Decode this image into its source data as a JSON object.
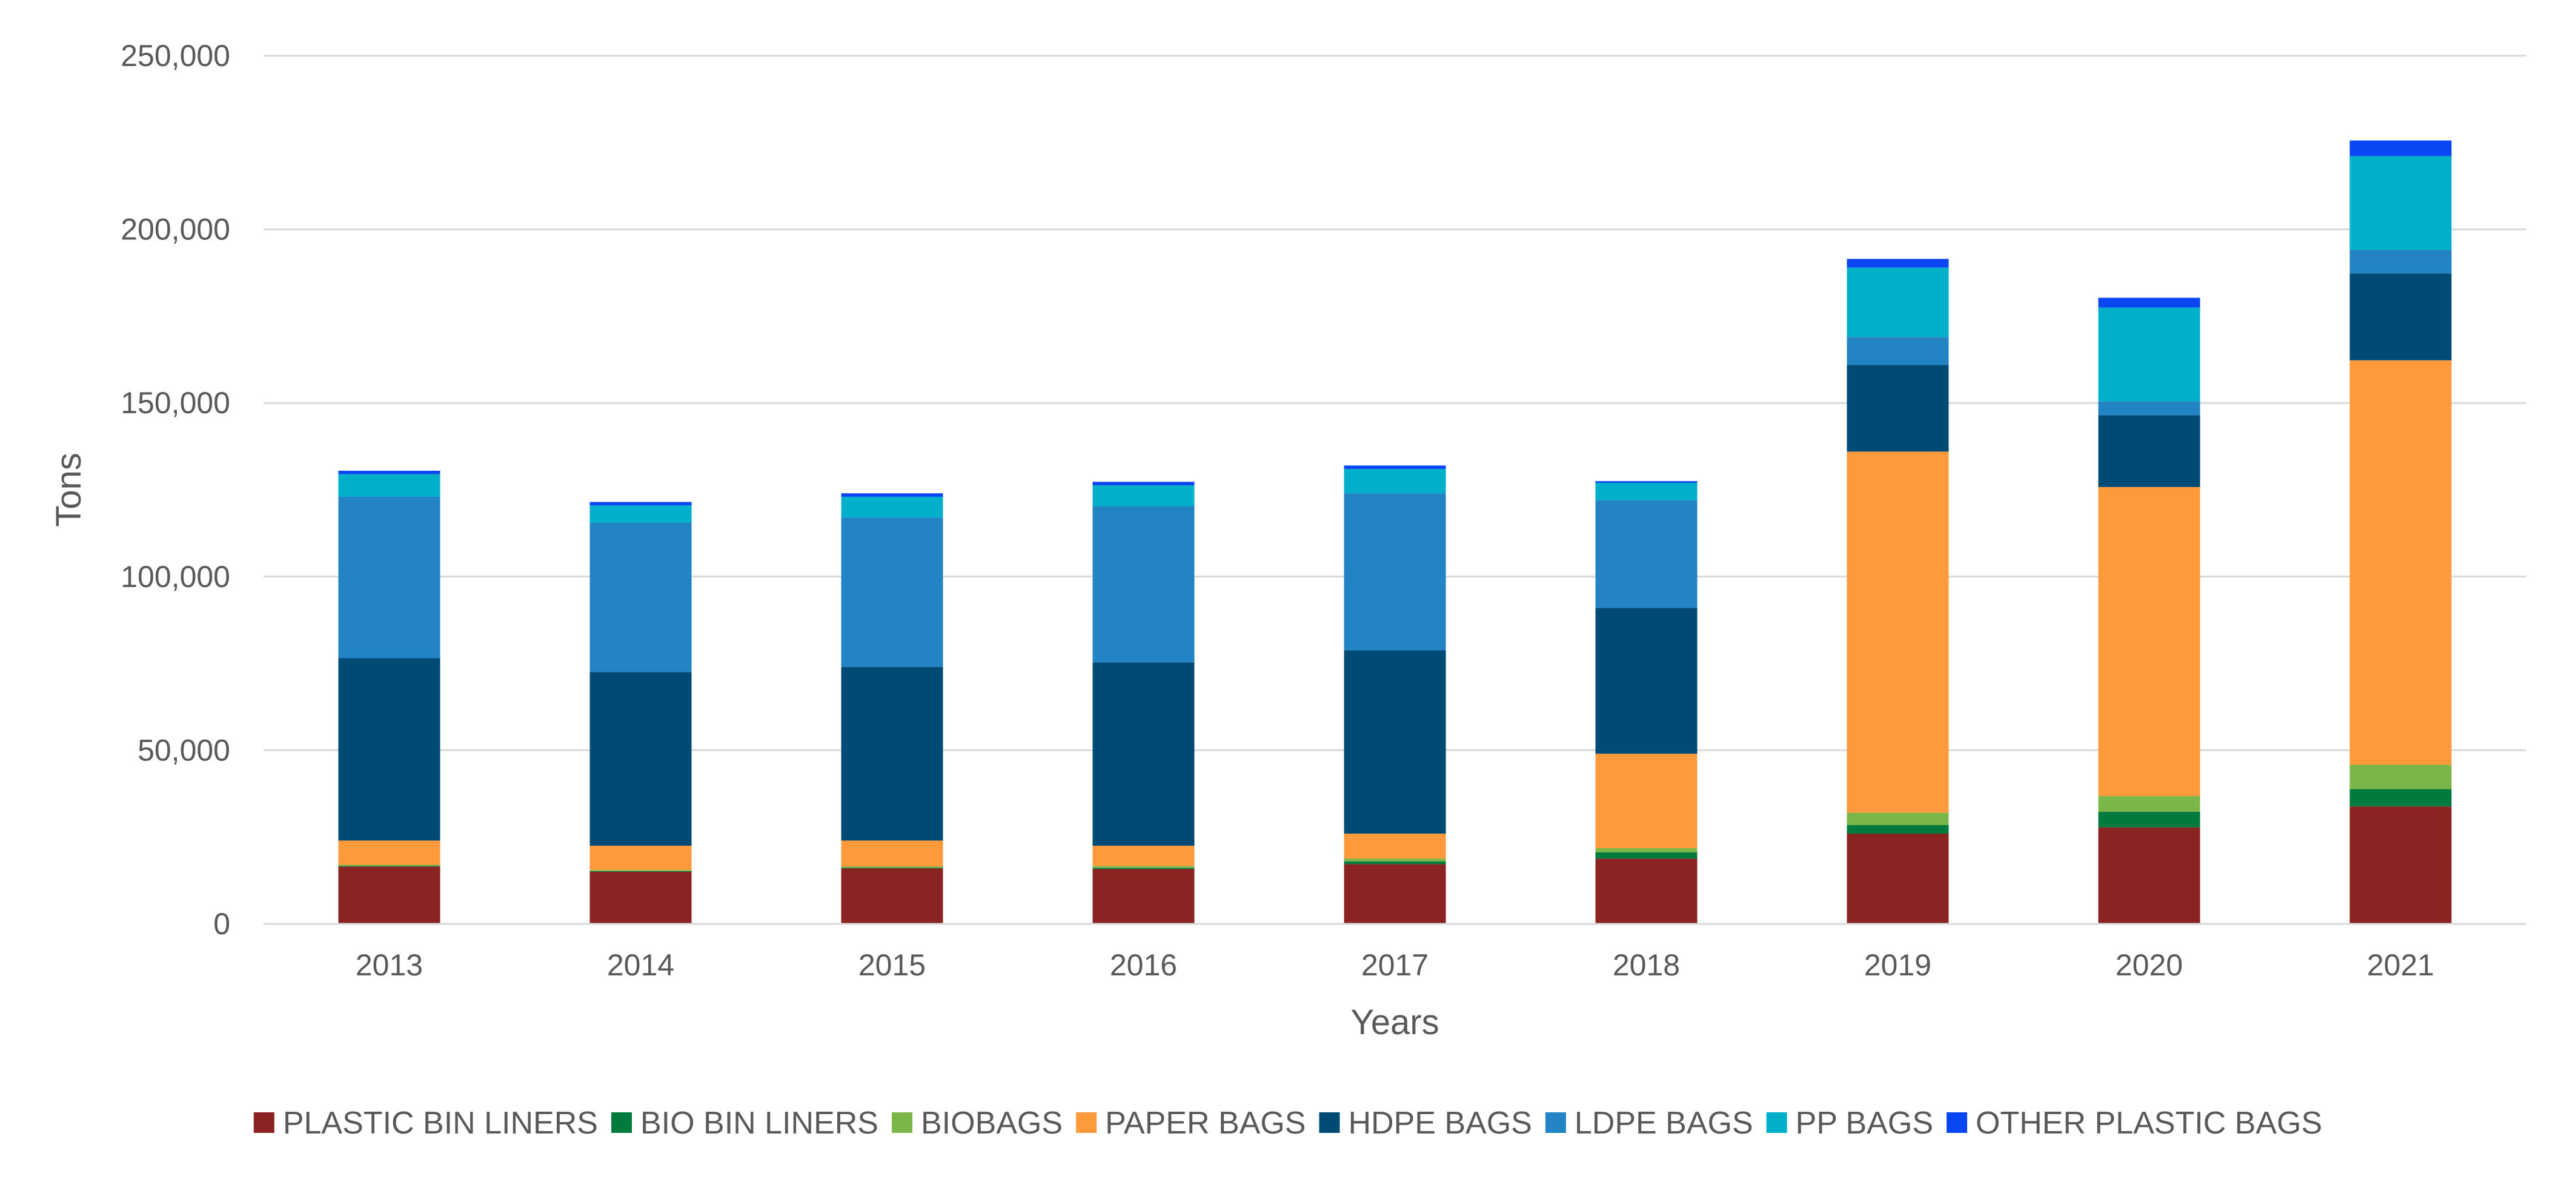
{
  "chart_data": {
    "type": "bar",
    "stacked": true,
    "title": "",
    "xlabel": "Years",
    "ylabel": "Tons",
    "ylim": [
      0,
      250000
    ],
    "yticks": [
      0,
      50000,
      100000,
      150000,
      200000,
      250000
    ],
    "ytick_labels": [
      "0",
      "50,000",
      "100,000",
      "150,000",
      "200,000",
      "250,000"
    ],
    "grid": true,
    "legend_position": "bottom",
    "categories": [
      "2013",
      "2014",
      "2015",
      "2016",
      "2017",
      "2018",
      "2019",
      "2020",
      "2021"
    ],
    "series": [
      {
        "name": "PLASTIC BIN LINERS",
        "color": "#8B2323",
        "values": [
          16500,
          15000,
          16000,
          15800,
          17200,
          18800,
          26000,
          27800,
          33800
        ]
      },
      {
        "name": "BIO BIN LINERS",
        "color": "#007A3D",
        "values": [
          200,
          200,
          200,
          300,
          800,
          1800,
          2500,
          4500,
          5000
        ]
      },
      {
        "name": "BIOBAGS",
        "color": "#7AB648",
        "values": [
          300,
          300,
          300,
          600,
          800,
          1200,
          3500,
          4500,
          7000
        ]
      },
      {
        "name": "PAPER BAGS",
        "color": "#FF9A3C",
        "values": [
          7000,
          7000,
          7500,
          5800,
          7200,
          27200,
          104000,
          89000,
          116500
        ]
      },
      {
        "name": "HDPE BAGS",
        "color": "#004B76",
        "values": [
          52500,
          50000,
          50000,
          52800,
          52800,
          42000,
          25000,
          20700,
          25000
        ]
      },
      {
        "name": "LDPE BAGS",
        "color": "#2283C5",
        "values": [
          46500,
          43000,
          43000,
          45000,
          45200,
          31000,
          8000,
          4000,
          6800
        ]
      },
      {
        "name": "PP BAGS",
        "color": "#00B0CB",
        "values": [
          6500,
          5000,
          6000,
          6000,
          7000,
          5000,
          20000,
          27000,
          27000
        ]
      },
      {
        "name": "OTHER PLASTIC BAGS",
        "color": "#0A46F2",
        "values": [
          1000,
          1000,
          1000,
          1000,
          1000,
          500,
          2500,
          2800,
          4500
        ]
      }
    ]
  }
}
